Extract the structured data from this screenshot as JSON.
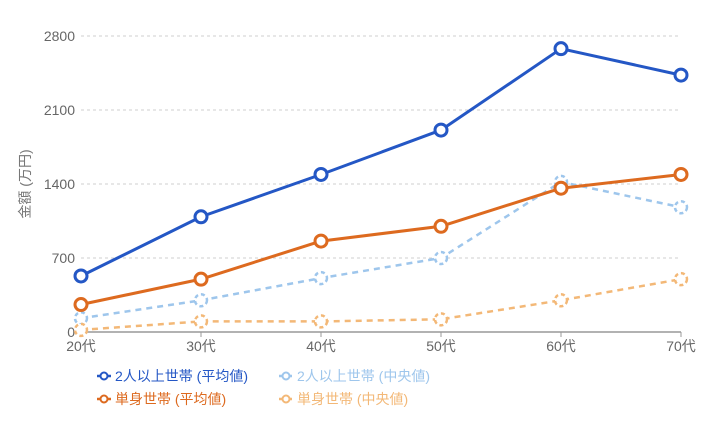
{
  "chart_data": {
    "type": "line",
    "title": "",
    "xlabel": "",
    "ylabel": "金額 (万円)",
    "categories": [
      "20代",
      "30代",
      "40代",
      "50代",
      "60代",
      "70代"
    ],
    "ylim": [
      0,
      2800
    ],
    "yticks": [
      0,
      700,
      1400,
      2100,
      2800
    ],
    "grid": true,
    "legend_position": "bottom-left",
    "series": [
      {
        "name": "2人以上世帯 (平均値)",
        "values": [
          530,
          1090,
          1490,
          1910,
          2680,
          2430
        ],
        "color": "#2457c5",
        "dashed": false
      },
      {
        "name": "2人以上世帯 (中央値)",
        "values": [
          130,
          300,
          510,
          700,
          1420,
          1180
        ],
        "color": "#9ec6ec",
        "dashed": true
      },
      {
        "name": "単身世帯 (平均値)",
        "values": [
          260,
          500,
          860,
          1000,
          1360,
          1490
        ],
        "color": "#dd6a1f",
        "dashed": false
      },
      {
        "name": "単身世帯 (中央値)",
        "values": [
          20,
          100,
          100,
          120,
          300,
          500
        ],
        "color": "#f3b877",
        "dashed": true
      }
    ]
  }
}
